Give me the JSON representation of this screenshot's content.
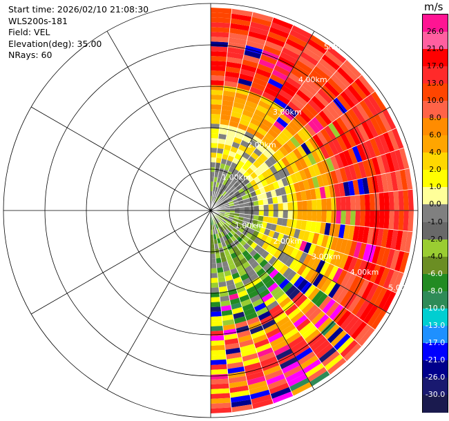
{
  "header": {
    "start_time": "Start time: 2026/02/10 21:08:30",
    "instrument": "WLS200s-181",
    "field": "Field: VEL",
    "elevation": "Elevation(deg): 35.00",
    "nrays": "NRays: 60"
  },
  "ring_labels": [
    "1.00km",
    "2.00km",
    "3.00km",
    "4.00km",
    "5.00km"
  ],
  "colorbar": {
    "unit": "m/s",
    "ticks": [
      "26.0",
      "21.0",
      "17.0",
      "13.0",
      "10.0",
      "8.0",
      "6.0",
      "4.0",
      "2.0",
      "1.0",
      "0.0",
      "-1.0",
      "-2.0",
      "-4.0",
      "-6.0",
      "-8.0",
      "-10.0",
      "-13.0",
      "-17.0",
      "-21.0",
      "-26.0",
      "-30.0"
    ],
    "colors": [
      "#ff1493",
      "#ff5fa0",
      "#ff0000",
      "#ff2a2a",
      "#ff4500",
      "#ff6347",
      "#ff8c00",
      "#ffa500",
      "#ffd700",
      "#ffff00",
      "#ffff99",
      "#808080",
      "#696969",
      "#9acd32",
      "#6b8e23",
      "#228b22",
      "#2e8b57",
      "#00ced1",
      "#1e90ff",
      "#0000ff",
      "#00008b",
      "#191970",
      "#1a1a4e"
    ]
  }
}
